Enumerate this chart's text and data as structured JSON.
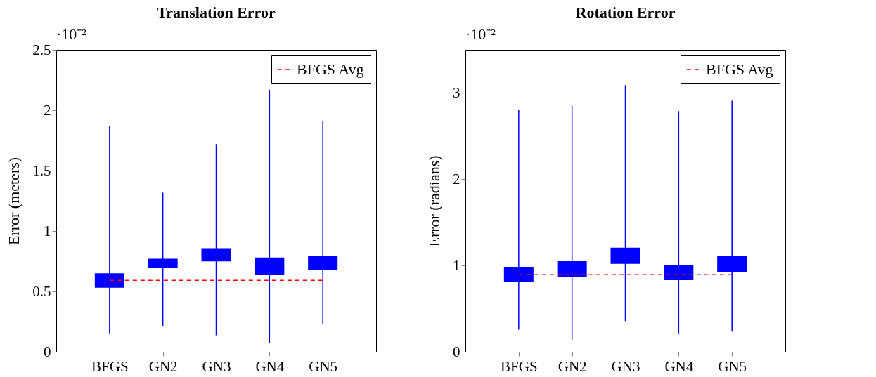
{
  "chart_data": [
    {
      "type": "box",
      "title": "Translation Error",
      "ylabel": "Error (meters)",
      "annotations": [
        "·10⁻²"
      ],
      "categories": [
        "BFGS",
        "GN2",
        "GN3",
        "GN4",
        "GN5"
      ],
      "ylim": [
        0,
        2.5
      ],
      "yticks": [
        0,
        0.5,
        1,
        1.5,
        2,
        2.5
      ],
      "legend": "top right",
      "series": [
        {
          "color": "#0000ff",
          "boxes": [
            {
              "low": 0.147,
              "q1": 0.531,
              "median": 0.59,
              "q3": 0.65,
              "high": 1.87
            },
            {
              "low": 0.214,
              "q1": 0.692,
              "median": 0.73,
              "q3": 0.77,
              "high": 1.317
            },
            {
              "low": 0.136,
              "q1": 0.748,
              "median": 0.8,
              "q3": 0.857,
              "high": 1.719
            },
            {
              "low": 0.071,
              "q1": 0.634,
              "median": 0.71,
              "q3": 0.781,
              "high": 2.17
            },
            {
              "low": 0.23,
              "q1": 0.674,
              "median": 0.73,
              "q3": 0.792,
              "high": 1.91
            }
          ]
        }
      ],
      "ref_lines": [
        {
          "axis": "y",
          "value": 0.592,
          "label": "BFGS Avg",
          "color": "#ff0000",
          "line_style": "dashed"
        }
      ]
    },
    {
      "type": "box",
      "title": "Rotation Error",
      "ylabel": "Error (radians)",
      "annotations": [
        "·10⁻²"
      ],
      "categories": [
        "BFGS",
        "GN2",
        "GN3",
        "GN4",
        "GN5"
      ],
      "ylim": [
        0,
        3.5
      ],
      "yticks": [
        0,
        1,
        2,
        3
      ],
      "legend": "top right",
      "series": [
        {
          "color": "#0000ff",
          "boxes": [
            {
              "low": 0.257,
              "q1": 0.806,
              "median": 0.89,
              "q3": 0.98,
              "high": 2.8
            },
            {
              "low": 0.14,
              "q1": 0.862,
              "median": 0.96,
              "q3": 1.05,
              "high": 2.85
            },
            {
              "low": 0.357,
              "q1": 1.02,
              "median": 1.11,
              "q3": 1.206,
              "high": 3.09
            },
            {
              "low": 0.205,
              "q1": 0.831,
              "median": 0.92,
              "q3": 1.008,
              "high": 2.79
            },
            {
              "low": 0.233,
              "q1": 0.924,
              "median": 1.01,
              "q3": 1.107,
              "high": 2.91
            }
          ]
        }
      ],
      "ref_lines": [
        {
          "axis": "y",
          "value": 0.893,
          "label": "BFGS Avg",
          "color": "#ff0000",
          "line_style": "dashed"
        }
      ]
    }
  ]
}
